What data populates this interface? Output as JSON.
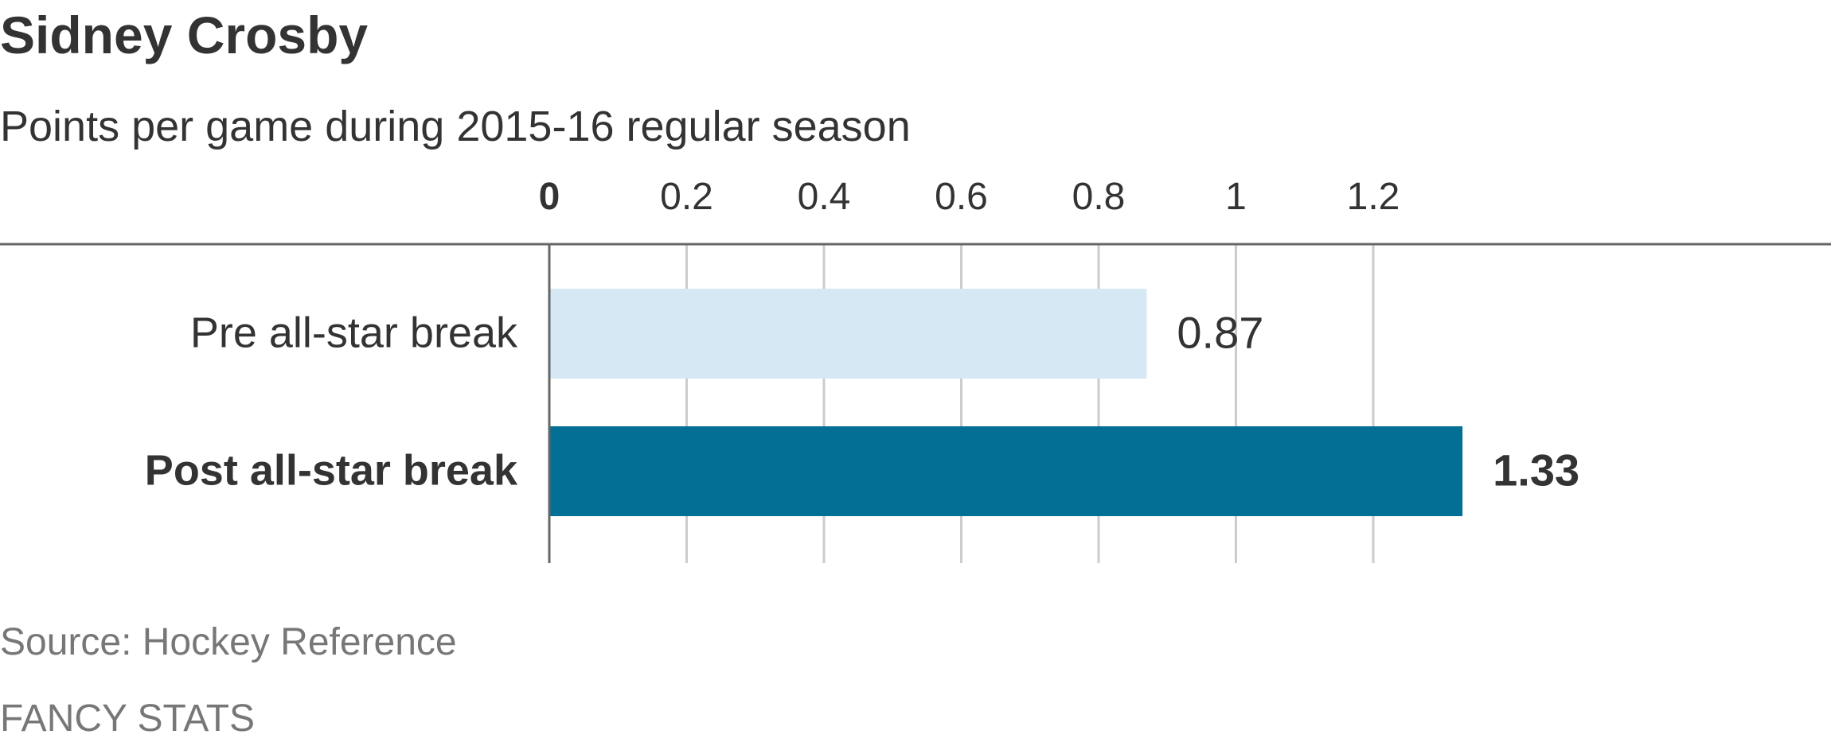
{
  "title": "Sidney Crosby",
  "subtitle": "Points per game during 2015-16 regular season",
  "source": "Source: Hockey Reference",
  "kicker": "FANCY STATS",
  "colors": {
    "text": "#333333",
    "muted": "#777777",
    "pre_bar": "#d6e8f4",
    "post_bar": "#036f94",
    "grid": "#cccccc",
    "axis": "#666666"
  },
  "chart_data": {
    "type": "bar",
    "orientation": "horizontal",
    "categories": [
      "Pre all-star break",
      "Post all-star break"
    ],
    "values": [
      0.87,
      1.33
    ],
    "value_labels": [
      "0.87",
      "1.33"
    ],
    "highlighted": [
      false,
      true
    ],
    "xlim": [
      0,
      1.35
    ],
    "ticks": [
      0,
      0.2,
      0.4,
      0.6,
      0.8,
      1,
      1.2
    ],
    "tick_labels": [
      "0",
      "0.2",
      "0.4",
      "0.6",
      "0.8",
      "1",
      "1.2"
    ],
    "grid": true,
    "xlabel": "",
    "ylabel": ""
  }
}
